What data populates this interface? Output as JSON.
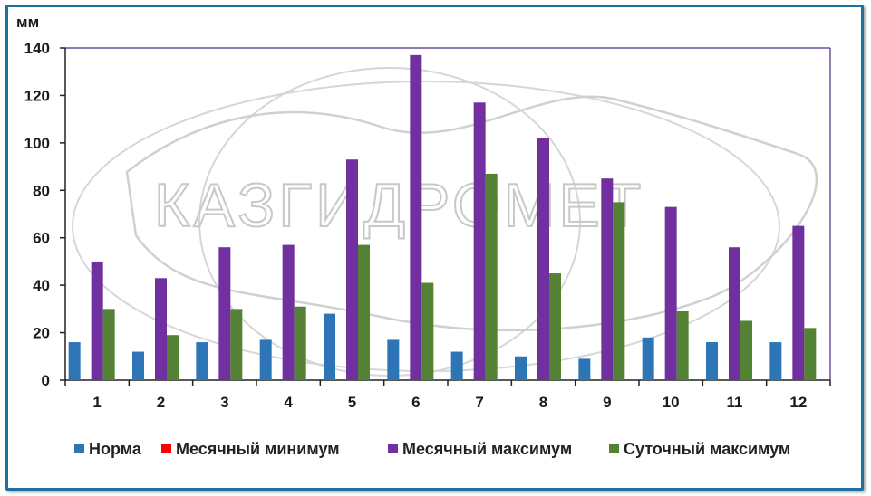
{
  "chart_data": {
    "type": "bar",
    "unit_label": "мм",
    "categories": [
      "1",
      "2",
      "3",
      "4",
      "5",
      "6",
      "7",
      "8",
      "9",
      "10",
      "11",
      "12"
    ],
    "series": [
      {
        "name": "Норма",
        "color": "#2e75b6",
        "values": [
          16,
          12,
          16,
          17,
          28,
          17,
          12,
          10,
          9,
          18,
          16,
          16
        ]
      },
      {
        "name": "Месячный минимум",
        "color": "#ff0000",
        "values": [
          0,
          0,
          0,
          0,
          0,
          0,
          0,
          0,
          0,
          0,
          0,
          0
        ]
      },
      {
        "name": "Месячный максимум",
        "color": "#7030a0",
        "values": [
          50,
          43,
          56,
          57,
          93,
          137,
          117,
          102,
          85,
          73,
          56,
          65
        ]
      },
      {
        "name": "Суточный максимум",
        "color": "#548235",
        "values": [
          30,
          19,
          30,
          31,
          57,
          41,
          87,
          45,
          75,
          29,
          25,
          22
        ]
      }
    ],
    "ylim": [
      0,
      140
    ],
    "yticks": [
      0,
      20,
      40,
      60,
      80,
      100,
      120,
      140
    ],
    "grid": false,
    "legend": "bottom",
    "watermark": "КАЗГИДРОМЕТ"
  }
}
